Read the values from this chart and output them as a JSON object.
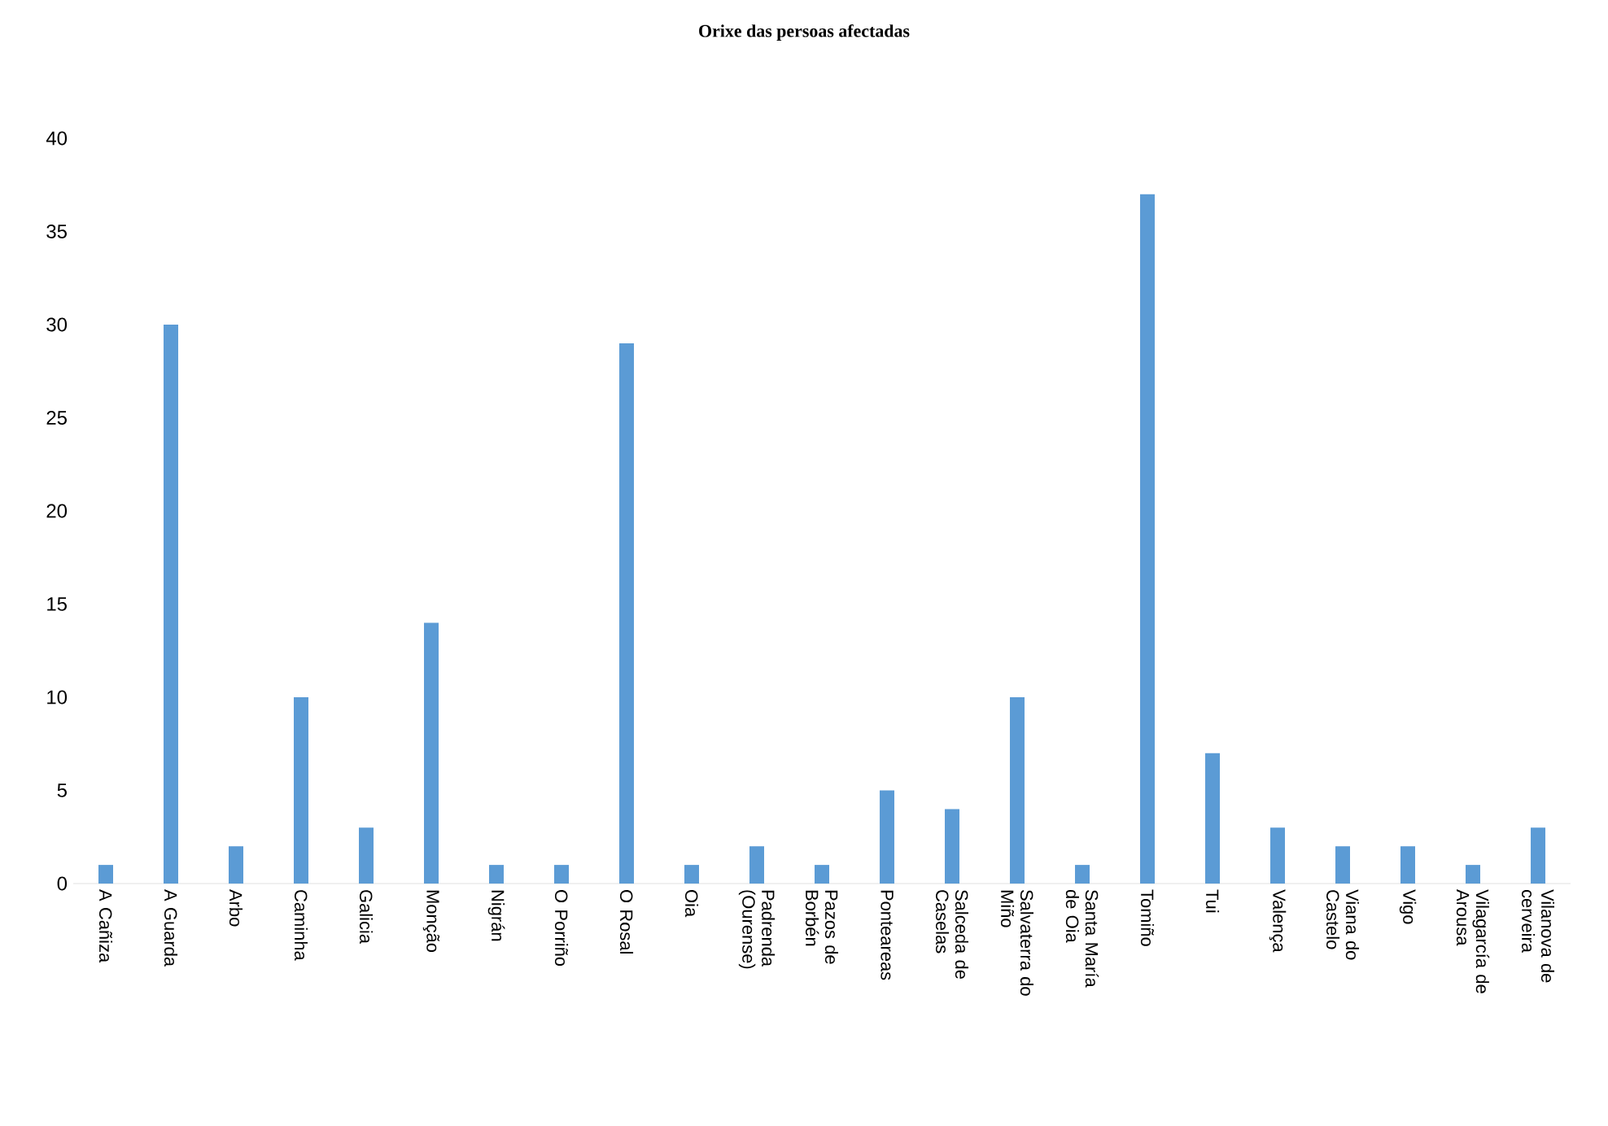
{
  "chart_data": {
    "type": "bar",
    "title": "Orixe das persoas afectadas",
    "categories": [
      "A Cañiza",
      "A Guarda",
      "Arbo",
      "Caminha",
      "Galicia",
      "Monção",
      "Nigrán",
      "O Porriño",
      "O Rosal",
      "Oia",
      "Padrenda (Ourense)",
      "Pazos de Borbén",
      "Ponteareas",
      "Salceda de Caselas",
      "Salvaterra do Miño",
      "Santa María de Oia",
      "Tomiño",
      "Tui",
      "Valença",
      "Viana do Castelo",
      "Vigo",
      "Vilagarcía de Arousa",
      "Vilanova de cerveira"
    ],
    "values": [
      1,
      30,
      2,
      10,
      3,
      14,
      1,
      1,
      29,
      1,
      2,
      1,
      5,
      4,
      10,
      1,
      37,
      7,
      3,
      2,
      2,
      1,
      3
    ],
    "color": "#5b9bd5",
    "ylim": [
      0,
      40
    ],
    "yticks": [
      0,
      5,
      10,
      15,
      20,
      25,
      30,
      35,
      40
    ]
  }
}
